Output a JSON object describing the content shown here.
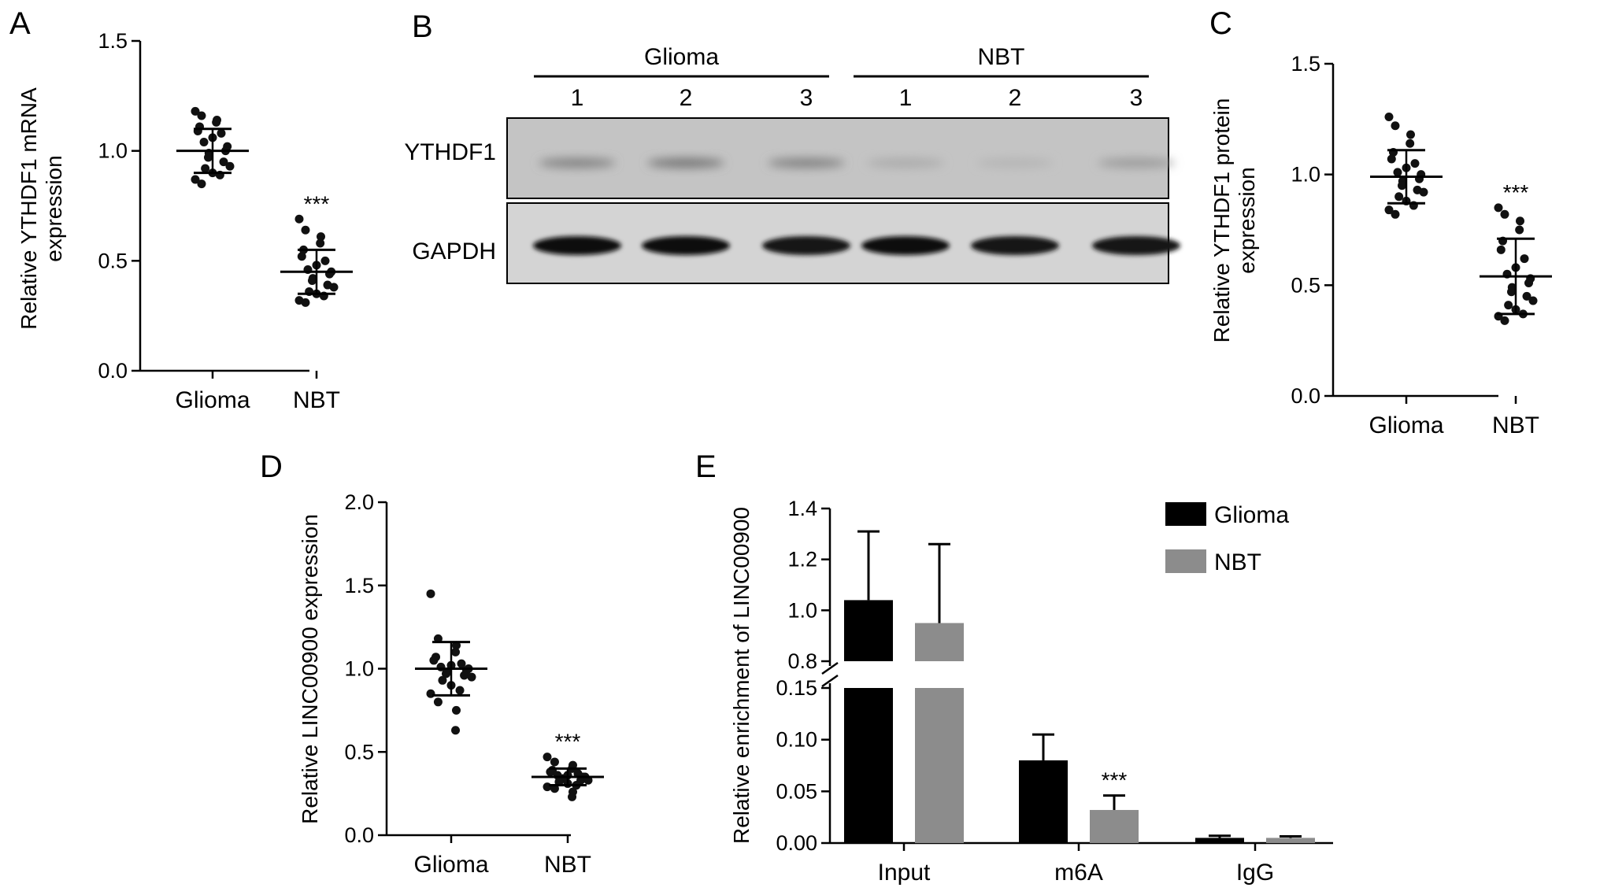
{
  "panels": [
    {
      "letter": "A",
      "chart_data": {
        "type": "scatter",
        "ylabel": [
          "Relative YTHDF1 mRNA",
          "expression"
        ],
        "ylim": [
          0,
          1.5
        ],
        "yticks": [
          0.0,
          0.5,
          1.0,
          1.5
        ],
        "yticklabels": [
          "0.0",
          "0.5",
          "1.0",
          "1.5"
        ],
        "categories": [
          "Glioma",
          "NBT"
        ],
        "series": [
          {
            "category": "Glioma",
            "mean": 1.0,
            "sd": 0.1,
            "values": [
              1.18,
              1.16,
              1.14,
              1.13,
              1.11,
              1.09,
              1.08,
              1.06,
              1.04,
              1.02,
              1.0,
              0.99,
              0.97,
              0.95,
              0.93,
              0.92,
              0.9,
              0.89,
              0.87,
              0.85
            ]
          },
          {
            "category": "NBT",
            "mean": 0.45,
            "sd": 0.1,
            "significance": "***",
            "values": [
              0.69,
              0.64,
              0.61,
              0.58,
              0.55,
              0.52,
              0.5,
              0.48,
              0.46,
              0.45,
              0.44,
              0.42,
              0.41,
              0.39,
              0.38,
              0.36,
              0.35,
              0.34,
              0.32,
              0.31
            ]
          }
        ]
      }
    },
    {
      "letter": "B",
      "blot": {
        "groups": [
          {
            "name": "Glioma",
            "lanes": [
              "1",
              "2",
              "3"
            ]
          },
          {
            "name": "NBT",
            "lanes": [
              "1",
              "2",
              "3"
            ]
          }
        ],
        "rows": [
          "YTHDF1",
          "GAPDH"
        ],
        "band_intensity": {
          "YTHDF1": [
            0.55,
            0.65,
            0.55,
            0.22,
            0.15,
            0.35
          ],
          "GAPDH": [
            1.0,
            1.0,
            0.95,
            0.98,
            0.95,
            0.95
          ]
        }
      }
    },
    {
      "letter": "C",
      "chart_data": {
        "type": "scatter",
        "ylabel": [
          "Relative YTHDF1 protein",
          "expression"
        ],
        "ylim": [
          0,
          1.5
        ],
        "yticks": [
          0.0,
          0.5,
          1.0,
          1.5
        ],
        "yticklabels": [
          "0.0",
          "0.5",
          "1.0",
          "1.5"
        ],
        "categories": [
          "Glioma",
          "NBT"
        ],
        "series": [
          {
            "category": "Glioma",
            "mean": 0.99,
            "sd": 0.12,
            "values": [
              1.26,
              1.22,
              1.18,
              1.14,
              1.1,
              1.07,
              1.05,
              1.03,
              1.01,
              1.0,
              0.98,
              0.97,
              0.95,
              0.93,
              0.92,
              0.9,
              0.88,
              0.86,
              0.84,
              0.82
            ]
          },
          {
            "category": "NBT",
            "mean": 0.54,
            "sd": 0.17,
            "significance": "***",
            "values": [
              0.85,
              0.82,
              0.79,
              0.75,
              0.7,
              0.66,
              0.62,
              0.58,
              0.55,
              0.53,
              0.51,
              0.49,
              0.47,
              0.45,
              0.43,
              0.41,
              0.39,
              0.37,
              0.36,
              0.34
            ]
          }
        ]
      }
    },
    {
      "letter": "D",
      "chart_data": {
        "type": "scatter",
        "ylabel": [
          "Relative LINC00900 expression"
        ],
        "ylim": [
          0,
          2.0
        ],
        "yticks": [
          0.0,
          0.5,
          1.0,
          1.5,
          2.0
        ],
        "yticklabels": [
          "0.0",
          "0.5",
          "1.0",
          "1.5",
          "2.0"
        ],
        "categories": [
          "Glioma",
          "NBT"
        ],
        "series": [
          {
            "category": "Glioma",
            "mean": 1.0,
            "sd": 0.16,
            "values": [
              1.45,
              1.18,
              1.14,
              1.1,
              1.07,
              1.05,
              1.03,
              1.02,
              1.01,
              1.0,
              0.99,
              0.98,
              0.97,
              0.96,
              0.95,
              0.93,
              0.9,
              0.87,
              0.85,
              0.8,
              0.75,
              0.63
            ]
          },
          {
            "category": "NBT",
            "mean": 0.35,
            "sd": 0.05,
            "significance": "***",
            "values": [
              0.47,
              0.44,
              0.42,
              0.4,
              0.39,
              0.38,
              0.37,
              0.36,
              0.36,
              0.35,
              0.35,
              0.34,
              0.34,
              0.33,
              0.33,
              0.32,
              0.31,
              0.3,
              0.29,
              0.28,
              0.26,
              0.23
            ]
          }
        ]
      }
    },
    {
      "letter": "E",
      "chart_data": {
        "type": "bar",
        "ylabel": "Relative enrichment of LINC00900",
        "categories": [
          "Input",
          "m6A",
          "IgG"
        ],
        "broken_axis": {
          "lower": {
            "ylim": [
              0,
              0.15
            ],
            "yticks": [
              0.0,
              0.05,
              0.1,
              0.15
            ],
            "yticklabels": [
              "0.00",
              "0.05",
              "0.10",
              "0.15"
            ]
          },
          "upper": {
            "ylim": [
              0.8,
              1.4
            ],
            "yticks": [
              0.8,
              1.0,
              1.2,
              1.4
            ],
            "yticklabels": [
              "0.8",
              "1.0",
              "1.2",
              "1.4"
            ]
          }
        },
        "series": [
          {
            "name": "Glioma",
            "color": "#000000",
            "values": [
              1.04,
              0.08,
              0.005
            ],
            "errors": [
              0.27,
              0.025,
              0.002
            ]
          },
          {
            "name": "NBT",
            "color": "#8c8c8c",
            "values": [
              0.95,
              0.032,
              0.005
            ],
            "errors": [
              0.31,
              0.014,
              0.0015
            ]
          }
        ],
        "annotations": [
          {
            "category": "m6A",
            "series": "NBT",
            "text": "***"
          }
        ],
        "legend_position": "top-right"
      }
    }
  ]
}
